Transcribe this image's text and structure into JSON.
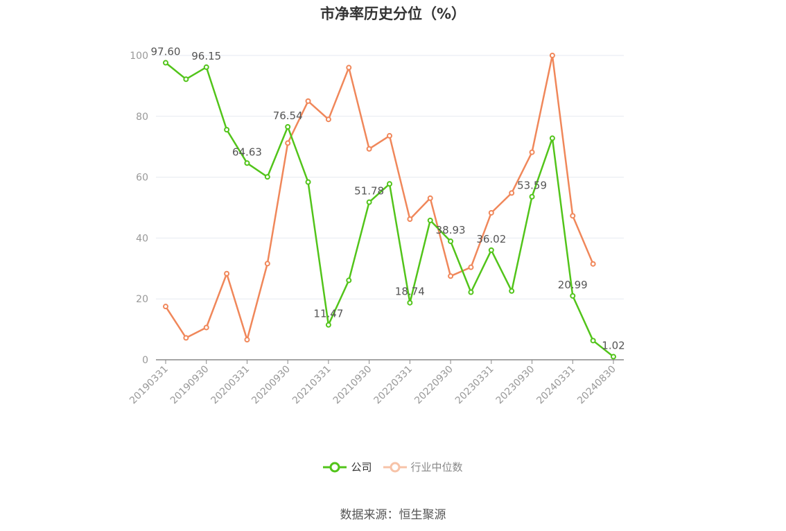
{
  "title": "市净率历史分位（%）",
  "source": "数据来源：恒生聚源",
  "colors": {
    "company": "#52c41a",
    "industry": "#f0875a",
    "grid": "#e6e9f0",
    "axis": "#999999"
  },
  "chart_data": {
    "type": "line",
    "title": "市净率历史分位（%）",
    "ylim": [
      0,
      100
    ],
    "yticks": [
      0,
      20,
      40,
      60,
      80,
      100
    ],
    "grid": true,
    "legend_position": "bottom",
    "categories": [
      "20190331",
      "20190630",
      "20190930",
      "20191231",
      "20200331",
      "20200630",
      "20200930",
      "20201231",
      "20210331",
      "20210630",
      "20210930",
      "20211231",
      "20220331",
      "20220630",
      "20220930",
      "20221231",
      "20230331",
      "20230630",
      "20230930",
      "20231231",
      "20240331",
      "20240630",
      "20240830"
    ],
    "x_tick_labels": [
      "20190331",
      "20190930",
      "20200331",
      "20200930",
      "20210331",
      "20210930",
      "20220331",
      "20220930",
      "20230331",
      "20230930",
      "20240331",
      "20240830"
    ],
    "series": [
      {
        "name": "公司",
        "color": "#52c41a",
        "values": [
          97.6,
          92.2,
          96.15,
          75.6,
          64.63,
          60.1,
          76.54,
          58.4,
          11.47,
          26.1,
          51.78,
          57.8,
          18.74,
          45.8,
          38.93,
          22.2,
          36.02,
          22.6,
          53.59,
          72.8,
          20.99,
          6.3,
          1.02
        ],
        "labels": [
          "97.60",
          null,
          "96.15",
          null,
          "64.63",
          null,
          "76.54",
          null,
          "11.47",
          null,
          "51.78",
          null,
          "18.74",
          null,
          "38.93",
          null,
          "36.02",
          null,
          "53.59",
          null,
          "20.99",
          null,
          "1.02"
        ]
      },
      {
        "name": "行业中位数",
        "color": "#f0875a",
        "values": [
          17.5,
          7.2,
          10.6,
          28.3,
          6.6,
          31.6,
          71.2,
          85.0,
          79.0,
          96.0,
          69.3,
          73.6,
          46.2,
          53.1,
          27.5,
          30.4,
          48.3,
          54.8,
          68.2,
          100.0,
          47.3,
          31.5,
          null
        ]
      }
    ]
  }
}
